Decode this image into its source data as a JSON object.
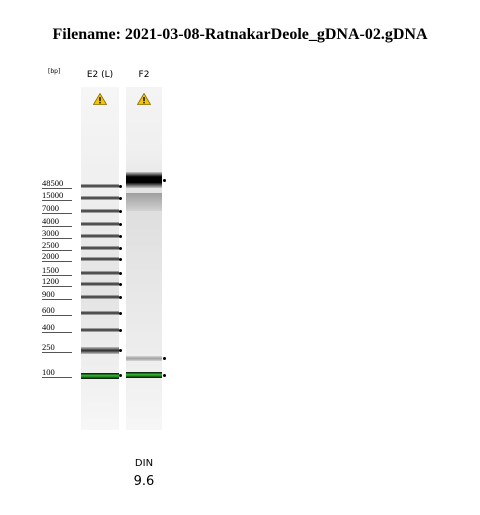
{
  "filename": "Filename: 2021-03-08-RatnakarDeole_gDNA-02.gDNA",
  "axis_unit": "[bp]",
  "ladder_sizes": [
    "48500",
    "15000",
    "7000",
    "4000",
    "3000",
    "2500",
    "2000",
    "1500",
    "1200",
    "900",
    "600",
    "400",
    "250",
    "100"
  ],
  "lanes": [
    {
      "label": "E2 (L)",
      "warning_icon": "warning-icon",
      "type": "ladder"
    },
    {
      "label": "F2",
      "warning_icon": "warning-icon",
      "type": "sample"
    }
  ],
  "din": {
    "label": "DIN",
    "value": "9.6"
  },
  "colors": {
    "marker_band": "#2fbf2f",
    "warning_fill": "#f5c400"
  }
}
